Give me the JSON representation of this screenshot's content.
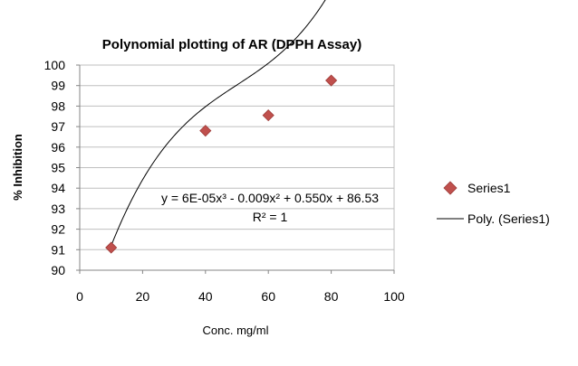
{
  "chart_data": {
    "type": "scatter",
    "title": "Polynomial plotting of AR (DPPH Assay)",
    "xlabel": "Conc. mg/ml",
    "ylabel": "% Inhibition",
    "xlim": [
      0,
      100
    ],
    "ylim": [
      90,
      100
    ],
    "x_ticks": [
      "0",
      "20",
      "40",
      "60",
      "80",
      "100"
    ],
    "y_ticks": [
      "90",
      "91",
      "92",
      "93",
      "94",
      "95",
      "96",
      "97",
      "98",
      "99",
      "100"
    ],
    "grid": "horizontal",
    "legend_position": "right",
    "series": [
      {
        "name": "Series1",
        "marker": "diamond",
        "color": "#c0504d",
        "x": [
          10,
          40,
          60,
          80
        ],
        "y": [
          91.1,
          96.8,
          97.55,
          99.25
        ]
      }
    ],
    "trendline": {
      "name": "Poly. (Series1)",
      "type": "polynomial",
      "color": "#000000",
      "x_range": [
        10,
        80
      ],
      "coefficients": [
        86.53,
        0.55,
        -0.009,
        6e-05
      ]
    },
    "annotations": {
      "equation": "y = 6E-05x³ - 0.009x² + 0.550x + 86.53",
      "r_squared": "R² = 1"
    }
  }
}
